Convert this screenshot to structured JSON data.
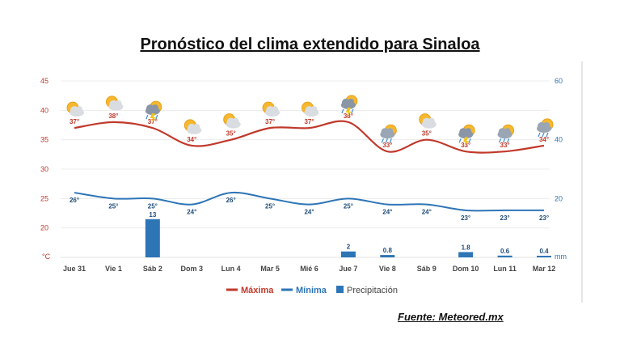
{
  "title": "Pronóstico del clima extendido para Sinaloa",
  "source": "Fuente: Meteored.mx",
  "chart_data": {
    "type": "line",
    "categories": [
      "Jue 31",
      "Vie 1",
      "Sáb 2",
      "Dom 3",
      "Lun 4",
      "Mar 5",
      "Mié 6",
      "Jue 7",
      "Vie 8",
      "Sáb 9",
      "Dom 10",
      "Lun 11",
      "Mar 12"
    ],
    "y_left": {
      "ticks": [
        45,
        40,
        35,
        30,
        25,
        20
      ],
      "unit": "°C",
      "ylim": [
        15,
        45
      ]
    },
    "y_right": {
      "ticks": [
        60,
        40,
        20
      ],
      "unit": "mm",
      "ylim": [
        0,
        60
      ]
    },
    "series": [
      {
        "name": "Máxima",
        "color": "#c0392b",
        "values": [
          37,
          38,
          37,
          34,
          35,
          37,
          37,
          38,
          33,
          35,
          33,
          33,
          34
        ],
        "labels": [
          "37°",
          "38°",
          "37°",
          "34°",
          "35°",
          "37°",
          "37°",
          "38°",
          "33°",
          "35°",
          "33°",
          "33°",
          "34°"
        ]
      },
      {
        "name": "Mínima",
        "color": "#2e75b6",
        "values": [
          26,
          25,
          25,
          24,
          26,
          25,
          24,
          25,
          24,
          24,
          23,
          23,
          23
        ],
        "labels": [
          "26°",
          "25°",
          "25°",
          "24°",
          "26°",
          "25°",
          "24°",
          "25°",
          "24°",
          "24°",
          "23°",
          "23°",
          "23°"
        ]
      },
      {
        "name": "Precipitación",
        "color": "#2e75b6",
        "type": "bar",
        "values": [
          null,
          null,
          13,
          null,
          null,
          null,
          null,
          2,
          0.8,
          null,
          1.8,
          0.6,
          0.4
        ],
        "labels": [
          "",
          "",
          "13",
          "",
          "",
          "",
          "",
          "2",
          "0.8",
          "",
          "1.8",
          "0.6",
          "0.4"
        ]
      }
    ],
    "icons": [
      "sun-cloud-icon",
      "sun-cloud-icon",
      "storm-icon",
      "sun-cloud-icon",
      "sun-cloud-icon",
      "sun-cloud-icon",
      "sun-cloud-icon",
      "storm-icon",
      "rain-cloud-icon",
      "sun-cloud-icon",
      "storm-icon",
      "rain-cloud-icon",
      "rain-cloud-icon"
    ],
    "grid": true,
    "legend_position": "bottom-center"
  }
}
